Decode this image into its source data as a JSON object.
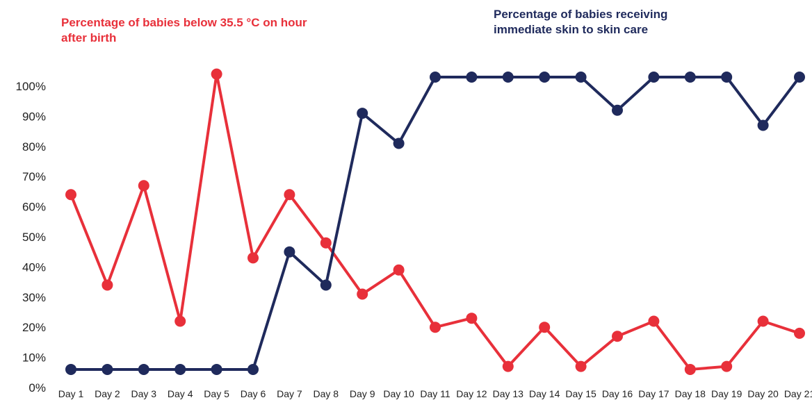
{
  "chart_data": {
    "type": "line",
    "categories": [
      "Day 1",
      "Day 2",
      "Day 3",
      "Day 4",
      "Day 5",
      "Day 6",
      "Day 7",
      "Day 8",
      "Day 9",
      "Day 10",
      "Day 11",
      "Day 12",
      "Day 13",
      "Day 14",
      "Day 15",
      "Day 16",
      "Day 17",
      "Day 18",
      "Day 19",
      "Day 20",
      "Day 21"
    ],
    "series": [
      {
        "name": "Percentage of babies below 35.5 °C on hour after birth",
        "color": "#e8303a",
        "values": [
          64,
          34,
          67,
          22,
          104,
          43,
          64,
          48,
          31,
          39,
          20,
          23,
          7,
          20,
          7,
          17,
          22,
          6,
          7,
          22,
          18
        ]
      },
      {
        "name": "Percentage of babies receiving immediate skin to skin care",
        "color": "#1f2a5c",
        "values": [
          6,
          6,
          6,
          6,
          6,
          6,
          45,
          34,
          91,
          81,
          103,
          103,
          103,
          103,
          103,
          92,
          103,
          103,
          103,
          87,
          103
        ]
      }
    ],
    "ylim": [
      0,
      106
    ],
    "yticks": [
      {
        "value": 0,
        "label": "0%"
      },
      {
        "value": 10,
        "label": "10%"
      },
      {
        "value": 20,
        "label": "20%"
      },
      {
        "value": 30,
        "label": "30%"
      },
      {
        "value": 40,
        "label": "40%"
      },
      {
        "value": 50,
        "label": "50%"
      },
      {
        "value": 60,
        "label": "60%"
      },
      {
        "value": 70,
        "label": "70%"
      },
      {
        "value": 80,
        "label": "80%"
      },
      {
        "value": 90,
        "label": "90%"
      },
      {
        "value": 100,
        "label": "100%"
      }
    ]
  }
}
